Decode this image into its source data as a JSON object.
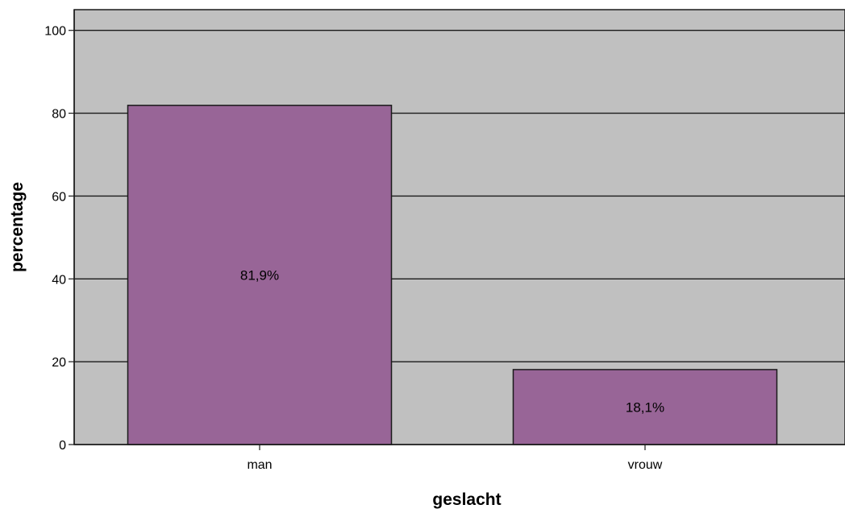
{
  "chart_data": {
    "type": "bar",
    "title": "",
    "xlabel": "geslacht",
    "ylabel": "percentage",
    "categories": [
      "man",
      "vrouw"
    ],
    "values": [
      81.9,
      18.1
    ],
    "data_labels": [
      "81,9%",
      "18,1%"
    ],
    "ylim": [
      0,
      105
    ],
    "yticks": [
      0,
      20,
      40,
      60,
      80,
      100
    ],
    "ytick_labels": [
      "0",
      "20",
      "40",
      "60",
      "80",
      "100"
    ],
    "grid": true,
    "legend": "none",
    "colors": {
      "bar": "#986597",
      "plot_background": "#c0c0c0",
      "gridline": "#1a1a1a",
      "axis": "#1a1a1a",
      "text": "#000000"
    }
  }
}
